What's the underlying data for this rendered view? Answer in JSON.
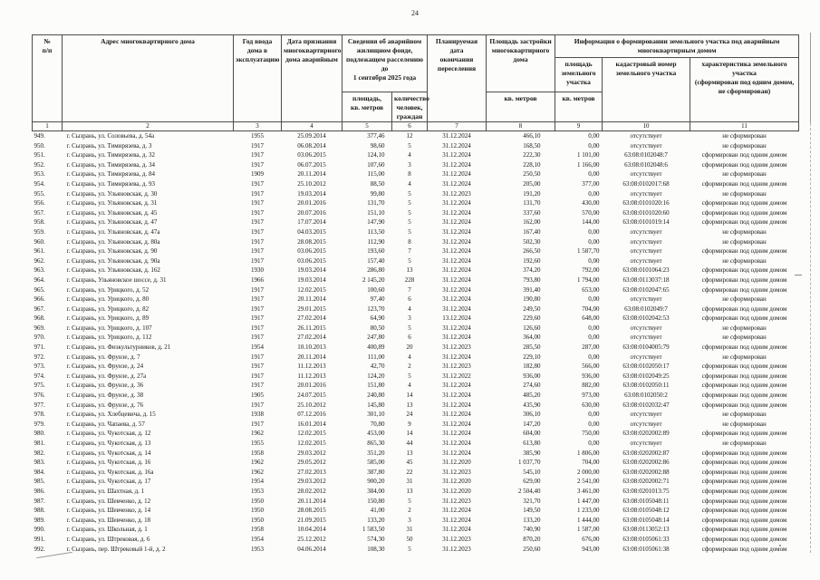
{
  "page": {
    "number": "24"
  },
  "table": {
    "header": {
      "col_num": "№\nп/п",
      "col_address": "Адрес многоквартирного дома",
      "col_year": "Год ввода\nдома в\nэксплуатацию",
      "col_date_declared": "Дата признания\nмногоквартирного\nдома аварийным",
      "group_fund": "Сведения об аварийном\nжилищном фонде,\nподлежащем расселению до\n1 сентября 2025 года",
      "sub_area": "площадь,\nкв. метров",
      "sub_people": "количество\nчеловек,\nграждан",
      "col_planned": "Планируемая\nдата\nокончания\nпереселения",
      "col_footprint": "Площадь застройки\nмногоквартирного\nдома",
      "footprint_units": "кв. метров",
      "group_land": "Информация о формировании земельного участка под аварийным\nмногоквартирным домом",
      "sub_land_area": "площадь\nземельного\nучастка",
      "land_area_units": "кв. метров",
      "sub_cadastral": "кадастровый номер\nземельного участка",
      "sub_characteristic": "характеристика земельного участка\n(сформирован под одним домом,\nне сформирован)"
    },
    "column_numbers": [
      "1",
      "2",
      "3",
      "4",
      "5",
      "6",
      "7",
      "8",
      "9",
      "10",
      "11"
    ],
    "rows": [
      [
        "949.",
        "г. Сызрань, ул. Соловьева, д. 54а",
        "1955",
        "25.09.2014",
        "377,46",
        "12",
        "31.12.2024",
        "466,10",
        "0,00",
        "отсутствует",
        "не сформирован"
      ],
      [
        "950.",
        "г. Сызрань, ул. Тимирязева, д. 3",
        "1917",
        "06.08.2014",
        "98,60",
        "5",
        "31.12.2024",
        "168,50",
        "0,00",
        "отсутствует",
        "не сформирован"
      ],
      [
        "951.",
        "г. Сызрань, ул. Тимирязева, д. 32",
        "1917",
        "03.06.2015",
        "124,10",
        "4",
        "31.12.2024",
        "222,30",
        "1 101,00",
        "63:08:0102048:7",
        "сформирован под одним домом"
      ],
      [
        "952.",
        "г. Сызрань, ул. Тимирязева, д. 34",
        "1917",
        "06.07.2015",
        "107,60",
        "3",
        "31.12.2024",
        "228,10",
        "1 166,00",
        "63:08:0102048:6",
        "сформирован под одним домом"
      ],
      [
        "953.",
        "г. Сызрань, ул. Тимирязева, д. 84",
        "1909",
        "20.11.2014",
        "115,00",
        "8",
        "31.12.2024",
        "250,50",
        "0,00",
        "отсутствует",
        "не сформирован"
      ],
      [
        "954.",
        "г. Сызрань, ул. Тимирязева, д. 93",
        "1917",
        "25.10.2012",
        "88,50",
        "4",
        "31.12.2024",
        "205,00",
        "377,00",
        "63:08:0102017:68",
        "сформирован под одним домом"
      ],
      [
        "955.",
        "г. Сызрань, ул. Ульяновская, д. 30",
        "1917",
        "19.03.2014",
        "99,80",
        "5",
        "31.12.2023",
        "191,20",
        "0,00",
        "отсутствует",
        "не сформирован"
      ],
      [
        "956.",
        "г. Сызрань, ул. Ульяновская, д. 31",
        "1917",
        "20.01.2016",
        "131,70",
        "5",
        "31.12.2024",
        "131,70",
        "430,00",
        "63:08:0101020:16",
        "сформирован под одним домом"
      ],
      [
        "957.",
        "г. Сызрань, ул. Ульяновская, д. 45",
        "1917",
        "20.07.2016",
        "151,10",
        "5",
        "31.12.2024",
        "337,60",
        "570,00",
        "63:08:0101020:60",
        "сформирован под одним домом"
      ],
      [
        "958.",
        "г. Сызрань, ул. Ульяновская, д. 47",
        "1917",
        "17.07.2014",
        "147,90",
        "5",
        "31.12.2024",
        "162,00",
        "144,00",
        "63:08:0101019:14",
        "сформирован под одним домом"
      ],
      [
        "959.",
        "г. Сызрань, ул. Ульяновская, д. 47а",
        "1917",
        "04.03.2015",
        "113,50",
        "5",
        "31.12.2024",
        "167,40",
        "0,00",
        "отсутствует",
        "не сформирован"
      ],
      [
        "960.",
        "г. Сызрань, ул. Ульяновская, д. 80а",
        "1917",
        "28.08.2015",
        "112,90",
        "8",
        "31.12.2024",
        "502,30",
        "0,00",
        "отсутствует",
        "не сформирован"
      ],
      [
        "961.",
        "г. Сызрань, ул. Ульяновская, д. 90",
        "1917",
        "03.06.2015",
        "193,60",
        "7",
        "31.12.2024",
        "266,50",
        "1 587,70",
        "отсутствует",
        "сформирован под одним домом"
      ],
      [
        "962.",
        "г. Сызрань, ул. Ульяновская, д. 90а",
        "1917",
        "03.06.2015",
        "157,40",
        "5",
        "31.12.2024",
        "192,60",
        "0,00",
        "отсутствует",
        "не сформирован"
      ],
      [
        "963.",
        "г. Сызрань, ул. Ульяновская, д. 162",
        "1930",
        "19.03.2014",
        "286,80",
        "13",
        "31.12.2024",
        "374,20",
        "792,00",
        "63:08:0101064:23",
        "сформирован под одним домом"
      ],
      [
        "964.",
        "г. Сызрань, Ульяновское шоссе, д. 31",
        "1966",
        "19.03.2014",
        "2 145,20",
        "228",
        "31.12.2024",
        "793,80",
        "1 794,00",
        "63:08:0113037:18",
        "сформирован под одним домом"
      ],
      [
        "965.",
        "г. Сызрань, ул. Урицкого, д. 52",
        "1917",
        "12.02.2015",
        "100,60",
        "7",
        "31.12.2024",
        "391,40",
        "653,00",
        "63:08:0102047:65",
        "сформирован под одним домом"
      ],
      [
        "966.",
        "г. Сызрань, ул. Урицкого, д. 80",
        "1917",
        "20.11.2014",
        "97,40",
        "6",
        "31.12.2024",
        "190,80",
        "0,00",
        "отсутствует",
        "не сформирован"
      ],
      [
        "967.",
        "г. Сызрань, ул. Урицкого, д. 82",
        "1917",
        "29.01.2015",
        "123,70",
        "4",
        "31.12.2024",
        "249,50",
        "704,00",
        "63:08:0102049:7",
        "сформирован под одним домом"
      ],
      [
        "968.",
        "г. Сызрань, ул. Урицкого, д. 89",
        "1917",
        "27.02.2014",
        "64,90",
        "3",
        "13.12.2024",
        "229,60",
        "648,00",
        "63:08:0102042:53",
        "сформирован под одним домом"
      ],
      [
        "969.",
        "г. Сызрань, ул. Урицкого, д. 107",
        "1917",
        "26.11.2015",
        "80,50",
        "5",
        "31.12.2024",
        "126,60",
        "0,00",
        "отсутствует",
        "не сформирован"
      ],
      [
        "970.",
        "г. Сызрань, ул. Урицкого, д. 112",
        "1917",
        "27.02.2014",
        "247,80",
        "6",
        "31.12.2024",
        "364,00",
        "0,00",
        "отсутствует",
        "не сформирован"
      ],
      [
        "971.",
        "г. Сызрань, ул. Физкультурников, д. 21",
        "1954",
        "10.10.2013",
        "400,89",
        "20",
        "31.12.2023",
        "285,50",
        "287,00",
        "63:08:0104005:79",
        "сформирован под одним домом"
      ],
      [
        "972.",
        "г. Сызрань, ул. Фрунзе, д. 7",
        "1917",
        "20.11.2014",
        "111,00",
        "4",
        "31.12.2024",
        "229,10",
        "0,00",
        "отсутствует",
        "не сформирован"
      ],
      [
        "973.",
        "г. Сызрань, ул. Фрунзе, д. 24",
        "1917",
        "11.12.2013",
        "42,70",
        "2",
        "31.12.2023",
        "182,80",
        "566,00",
        "63:08:0102050:17",
        "сформирован под одним домом"
      ],
      [
        "974.",
        "г. Сызрань, ул. Фрунзе, д. 27а",
        "1917",
        "11.12.2013",
        "124,20",
        "5",
        "31.12.2022",
        "936,00",
        "936,00",
        "63:08:0102049:25",
        "сформирован под одним домом"
      ],
      [
        "975.",
        "г. Сызрань, ул. Фрунзе, д. 36",
        "1917",
        "20.01.2016",
        "151,80",
        "4",
        "31.12.2024",
        "274,60",
        "882,00",
        "63:08:0102050:11",
        "сформирован под одним домом"
      ],
      [
        "976.",
        "г. Сызрань, ул. Фрунзе, д. 38",
        "1905",
        "24.07.2015",
        "240,80",
        "14",
        "31.12.2024",
        "485,20",
        "973,00",
        "63:08:0102050:2",
        "сформирован под одним домом"
      ],
      [
        "977.",
        "г. Сызрань, ул. Фрунзе, д. 76",
        "1917",
        "25.10.2012",
        "145,80",
        "13",
        "31.12.2024",
        "435,90",
        "630,00",
        "63:08:0102032:47",
        "сформирован под одним домом"
      ],
      [
        "978.",
        "г. Сызрань, ул. Хлебцевича, д. 15",
        "1938",
        "07.12.2016",
        "301,10",
        "24",
        "31.12.2024",
        "306,10",
        "0,00",
        "отсутствует",
        "не сформирован"
      ],
      [
        "979.",
        "г. Сызрань, ул. Чапаева, д. 57",
        "1917",
        "16.01.2014",
        "70,80",
        "9",
        "31.12.2024",
        "147,20",
        "0,00",
        "отсутствует",
        "не сформирован"
      ],
      [
        "980.",
        "г. Сызрань, ул. Чукотская, д. 12",
        "1962",
        "12.02.2015",
        "453,00",
        "14",
        "31.12.2024",
        "604,00",
        "750,00",
        "63:08:0202002:89",
        "сформирован под одним домом"
      ],
      [
        "981.",
        "г. Сызрань, ул. Чукотская, д. 13",
        "1955",
        "12.02.2015",
        "865,30",
        "44",
        "31.12.2024",
        "613,80",
        "0,00",
        "отсутствует",
        "не сформирован"
      ],
      [
        "982.",
        "г. Сызрань, ул. Чукотская, д. 14",
        "1958",
        "29.03.2012",
        "351,20",
        "13",
        "31.12.2024",
        "385,90",
        "1 806,00",
        "63:08:0202002:87",
        "сформирован под одним домом"
      ],
      [
        "983.",
        "г. Сызрань, ул. Чукотская, д. 16",
        "1962",
        "29.05.2012",
        "585,00",
        "45",
        "31.12.2020",
        "1 037,70",
        "704,00",
        "63:08:0202002:86",
        "сформирован под одним домом"
      ],
      [
        "984.",
        "г. Сызрань, ул. Чукотская, д. 16а",
        "1962",
        "27.02.2013",
        "387,80",
        "22",
        "31.12.2023",
        "545,10",
        "2 000,00",
        "63:08:0202002:88",
        "сформирован под одним домом"
      ],
      [
        "985.",
        "г. Сызрань, ул. Чукотская, д. 17",
        "1954",
        "29.03.2012",
        "900,20",
        "31",
        "31.12.2020",
        "629,00",
        "2 541,00",
        "63:08:0202002:71",
        "сформирован под одним домом"
      ],
      [
        "986.",
        "г. Сызрань, ул. Шахтная, д. 1",
        "1953",
        "28.02.2012",
        "384,00",
        "13",
        "31.12.2020",
        "2 504,40",
        "3 461,00",
        "63:08:0201013:75",
        "сформирован под одним домом"
      ],
      [
        "987.",
        "г. Сызрань, ул. Шевченко, д. 12",
        "1950",
        "20.11.2014",
        "150,80",
        "5",
        "31.12.2023",
        "321,70",
        "1 447,00",
        "63:08:0105048:11",
        "сформирован под одним домом"
      ],
      [
        "988.",
        "г. Сызрань, ул. Шевченко, д. 14",
        "1950",
        "28.08.2015",
        "41,00",
        "2",
        "31.12.2024",
        "149,50",
        "1 233,00",
        "63:08:0105048:12",
        "сформирован под одним домом"
      ],
      [
        "989.",
        "г. Сызрань, ул. Шевченко, д. 18",
        "1950",
        "21.09.2015",
        "133,20",
        "3",
        "31.12.2024",
        "133,20",
        "1 444,00",
        "63:08:0105048:14",
        "сформирован под одним домом"
      ],
      [
        "990.",
        "г. Сызрань, ул. Школьная, д. 1",
        "1958",
        "10.04.2014",
        "1 583,50",
        "31",
        "31.12.2024",
        "740,90",
        "1 587,00",
        "63:08:0113052:13",
        "сформирован под одним домом"
      ],
      [
        "991.",
        "г. Сызрань, ул. Штрековая, д. 6",
        "1954",
        "25.12.2012",
        "574,30",
        "50",
        "31.12.2023",
        "870,20",
        "676,00",
        "63:08:0105061:33",
        "сформирован под одним домом"
      ],
      [
        "992.",
        "г. Сызрань, пер. Штрековый 1-й, д. 2",
        "1953",
        "04.06.2014",
        "108,30",
        "5",
        "31.12.2023",
        "250,60",
        "943,00",
        "63:08:0105061:38",
        "сформирован под одним домом"
      ]
    ]
  }
}
